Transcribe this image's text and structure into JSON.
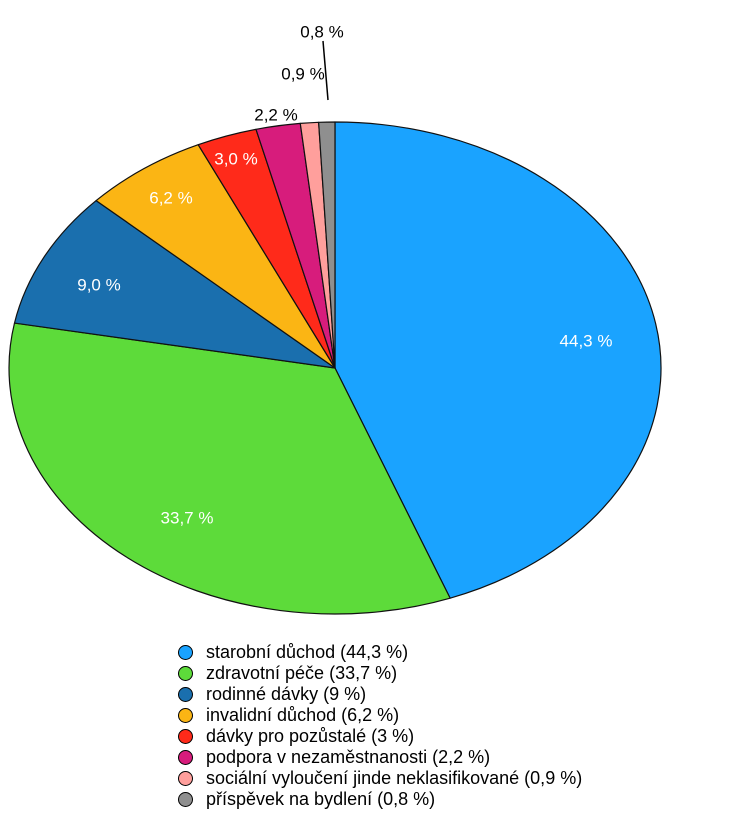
{
  "chart_data": {
    "type": "pie",
    "start_angle_deg": 0,
    "direction": "clockwise",
    "slices": [
      {
        "name": "starobní důchod",
        "value": 44.3,
        "label": "44,3 %",
        "legend": "starobní důchod (44,3 %)",
        "color": "#1aa3ff",
        "label_color": "#ffffff"
      },
      {
        "name": "zdravotní péče",
        "value": 33.7,
        "label": "33,7 %",
        "legend": "zdravotní péče (33,7 %)",
        "color": "#5ddb3a",
        "label_color": "#ffffff"
      },
      {
        "name": "rodinné dávky",
        "value": 9.0,
        "label": "9,0 %",
        "legend": "rodinné dávky (9 %)",
        "color": "#1a6fae",
        "label_color": "#ffffff"
      },
      {
        "name": "invalidní důchod",
        "value": 6.2,
        "label": "6,2 %",
        "legend": "invalidní důchod (6,2 %)",
        "color": "#fbb514",
        "label_color": "#ffffff"
      },
      {
        "name": "dávky pro pozůstalé",
        "value": 3.0,
        "label": "3,0 %",
        "legend": "dávky pro pozůstalé (3 %)",
        "color": "#ff2a1a",
        "label_color": "#ffffff"
      },
      {
        "name": "podpora v nezaměstnanosti",
        "value": 2.2,
        "label": "2,2 %",
        "legend": "podpora v nezaměstnanosti (2,2 %)",
        "color": "#d71c7c",
        "label_color": "#000000"
      },
      {
        "name": "sociální vyloučení jinde neklasifikované",
        "value": 0.9,
        "label": "0,9 %",
        "legend": "sociální vyloučení jinde neklasifikované (0,9 %)",
        "color": "#ff9f9c",
        "label_color": "#000000"
      },
      {
        "name": "příspěvek na bydlení",
        "value": 0.8,
        "label": "0,8 %",
        "legend": "příspěvek na bydlení (0,8 %)",
        "color": "#8f8f8f",
        "label_color": "#000000"
      }
    ]
  }
}
